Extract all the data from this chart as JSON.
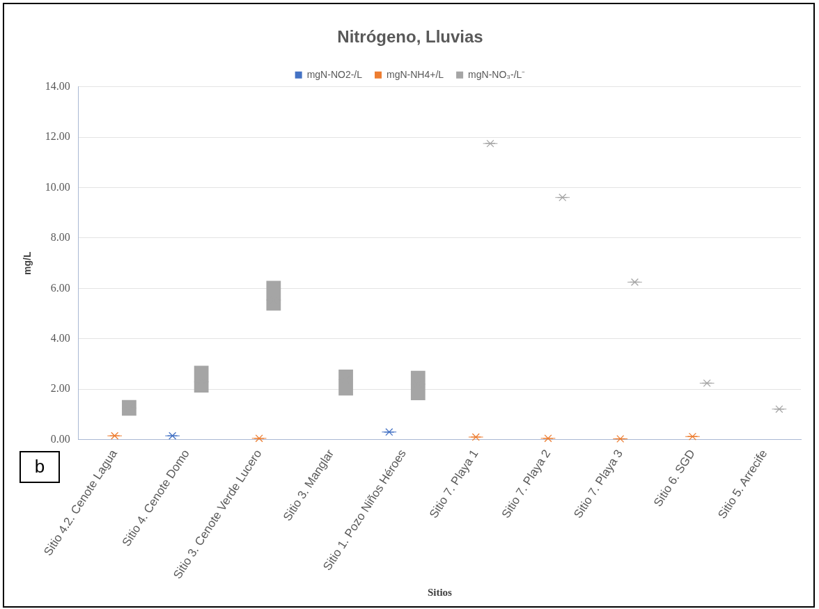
{
  "chart_data": {
    "type": "box",
    "title": "Nitrógeno, Lluvias",
    "xlabel": "Sitios",
    "ylabel": "mg/L",
    "categories": [
      "Sitio 4.2. Cenote Lagua",
      "Sitio 4. Cenote Domo",
      "Sitio 3. Cenote Verde Lucero",
      "Sitio 3. Manglar",
      "Sitio 1. Pozo Niños Héroes",
      "Sitio 7. Playa 1",
      "Sitio 7. Playa 2",
      "Sitio 7. Playa 3",
      "Sitio 6. SGD",
      "Sitio 5. Arrecife"
    ],
    "series": [
      {
        "name": "mgN-NO2-/L",
        "color": "#4472c4",
        "boxes": [
          null,
          {
            "low": 0.15,
            "q1": 0.15,
            "median": 0.15,
            "q3": 0.15,
            "high": 0.15,
            "mean": 0.15
          },
          null,
          null,
          {
            "low": 0.3,
            "q1": 0.3,
            "median": 0.3,
            "q3": 0.3,
            "high": 0.3,
            "mean": 0.3
          },
          null,
          null,
          null,
          null,
          null
        ]
      },
      {
        "name": "mgN-NH4+/L",
        "color": "#ed7d31",
        "boxes": [
          {
            "low": 0.15,
            "q1": 0.15,
            "median": 0.15,
            "q3": 0.15,
            "high": 0.15,
            "mean": 0.15
          },
          null,
          {
            "low": 0.05,
            "q1": 0.05,
            "median": 0.05,
            "q3": 0.05,
            "high": 0.05,
            "mean": 0.05
          },
          null,
          null,
          {
            "low": 0.1,
            "q1": 0.1,
            "median": 0.1,
            "q3": 0.1,
            "high": 0.1,
            "mean": 0.1
          },
          {
            "low": 0.05,
            "q1": 0.05,
            "median": 0.05,
            "q3": 0.05,
            "high": 0.05,
            "mean": 0.05
          },
          {
            "low": 0.03,
            "q1": 0.03,
            "median": 0.03,
            "q3": 0.03,
            "high": 0.03,
            "mean": 0.03
          },
          {
            "low": 0.12,
            "q1": 0.12,
            "median": 0.12,
            "q3": 0.12,
            "high": 0.12,
            "mean": 0.12
          },
          null
        ]
      },
      {
        "name": "mgN-NO₃-/L⁻",
        "color": "#a5a5a5",
        "boxes": [
          {
            "low": 0.95,
            "q1": 0.95,
            "median": 1.25,
            "q3": 1.57,
            "high": 1.57,
            "mean": 1.25
          },
          {
            "low": 1.87,
            "q1": 1.87,
            "median": 2.29,
            "q3": 2.93,
            "high": 2.93,
            "mean": 2.29
          },
          {
            "low": 5.12,
            "q1": 5.12,
            "median": 5.54,
            "q3": 6.3,
            "high": 6.3,
            "mean": 5.54
          },
          {
            "low": 1.75,
            "q1": 1.75,
            "median": 2.38,
            "q3": 2.78,
            "high": 2.78,
            "mean": 2.38
          },
          {
            "low": 1.56,
            "q1": 1.56,
            "median": 2.2,
            "q3": 2.73,
            "high": 2.73,
            "mean": 2.2
          },
          {
            "low": 11.75,
            "q1": 11.75,
            "median": 11.75,
            "q3": 11.75,
            "high": 11.75,
            "mean": 11.75
          },
          {
            "low": 9.61,
            "q1": 9.61,
            "median": 9.61,
            "q3": 9.61,
            "high": 9.61,
            "mean": 9.61
          },
          {
            "low": 6.25,
            "q1": 6.25,
            "median": 6.25,
            "q3": 6.25,
            "high": 6.25,
            "mean": 6.25
          },
          {
            "low": 2.24,
            "q1": 2.24,
            "median": 2.24,
            "q3": 2.24,
            "high": 2.24,
            "mean": 2.24
          },
          {
            "low": 1.21,
            "q1": 1.21,
            "median": 1.21,
            "q3": 1.21,
            "high": 1.21,
            "mean": 1.21
          }
        ]
      }
    ],
    "ylim": [
      0,
      14
    ],
    "yticks": [
      {
        "value": 0,
        "label": "0.00"
      },
      {
        "value": 2,
        "label": "2.00"
      },
      {
        "value": 4,
        "label": "4.00"
      },
      {
        "value": 6,
        "label": "6.00"
      },
      {
        "value": 8,
        "label": "8.00"
      },
      {
        "value": 10,
        "label": "10.00"
      },
      {
        "value": 12,
        "label": "12.00"
      },
      {
        "value": 14,
        "label": "14.00"
      }
    ],
    "grid": "y",
    "legend": "top",
    "marker": "star",
    "annotations": [
      "b"
    ]
  }
}
